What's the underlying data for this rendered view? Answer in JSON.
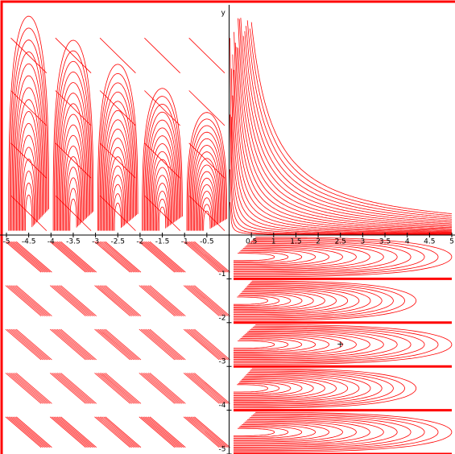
{
  "chart_data": {
    "type": "contour",
    "y_label": "y",
    "xlim": [
      -5,
      5
    ],
    "ylim": [
      -5,
      5
    ],
    "xticks": [
      -5,
      -4.5,
      -4,
      -3.5,
      -3,
      -2.5,
      -2,
      -1.5,
      -1,
      -0.5,
      0.5,
      1,
      1.5,
      2,
      2.5,
      3,
      3.5,
      4,
      4.5,
      5
    ],
    "yticks": [
      -5,
      -4,
      -3,
      -2,
      -1
    ],
    "color": "#ff0000",
    "marker": {
      "label": "+",
      "x": 2.5,
      "y": -2.5
    }
  }
}
